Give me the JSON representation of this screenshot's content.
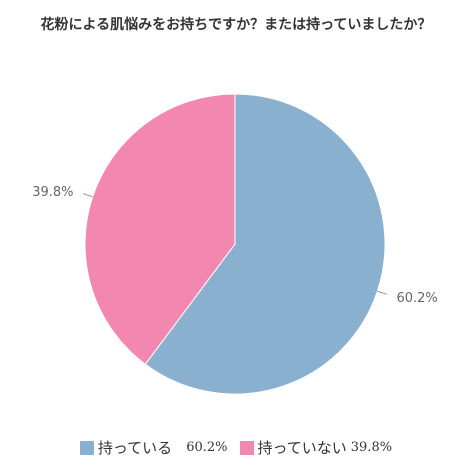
{
  "chart_data": {
    "type": "pie",
    "title": "花粉による肌悩みをお持ちですか？または持っていましたか？",
    "slices": [
      {
        "label": "持っている",
        "value": 60.2,
        "display": "60.2%",
        "color": "#8ab0d0"
      },
      {
        "label": "持っていない",
        "value": 39.8,
        "display": "39.8%",
        "color": "#f288b0"
      }
    ],
    "start_angle_deg": 0,
    "direction": "clockwise",
    "legend_position": "bottom"
  }
}
